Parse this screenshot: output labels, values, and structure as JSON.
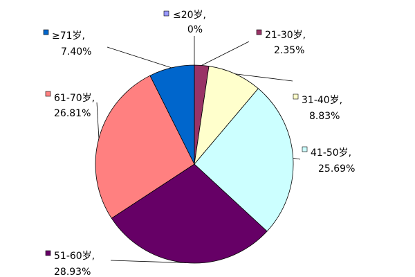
{
  "chart_data": {
    "type": "pie",
    "title": "",
    "legend": "none",
    "slices": [
      {
        "label": "≤20岁,",
        "percent_label": "0%",
        "value": 0,
        "color": "#9999ff"
      },
      {
        "label": "21-30岁,",
        "percent_label": "2.35%",
        "value": 2.35,
        "color": "#993366"
      },
      {
        "label": "31-40岁,",
        "percent_label": "8.83%",
        "value": 8.83,
        "color": "#ffffcc"
      },
      {
        "label": "41-50岁,",
        "percent_label": "25.69%",
        "value": 25.69,
        "color": "#ccffff"
      },
      {
        "label": "51-60岁,",
        "percent_label": "28.93%",
        "value": 28.93,
        "color": "#660066"
      },
      {
        "label": "61-70岁,",
        "percent_label": "26.81%",
        "value": 26.81,
        "color": "#ff8080"
      },
      {
        "label": "≥71岁,",
        "percent_label": "7.40%",
        "value": 7.4,
        "color": "#0066cc"
      }
    ]
  }
}
